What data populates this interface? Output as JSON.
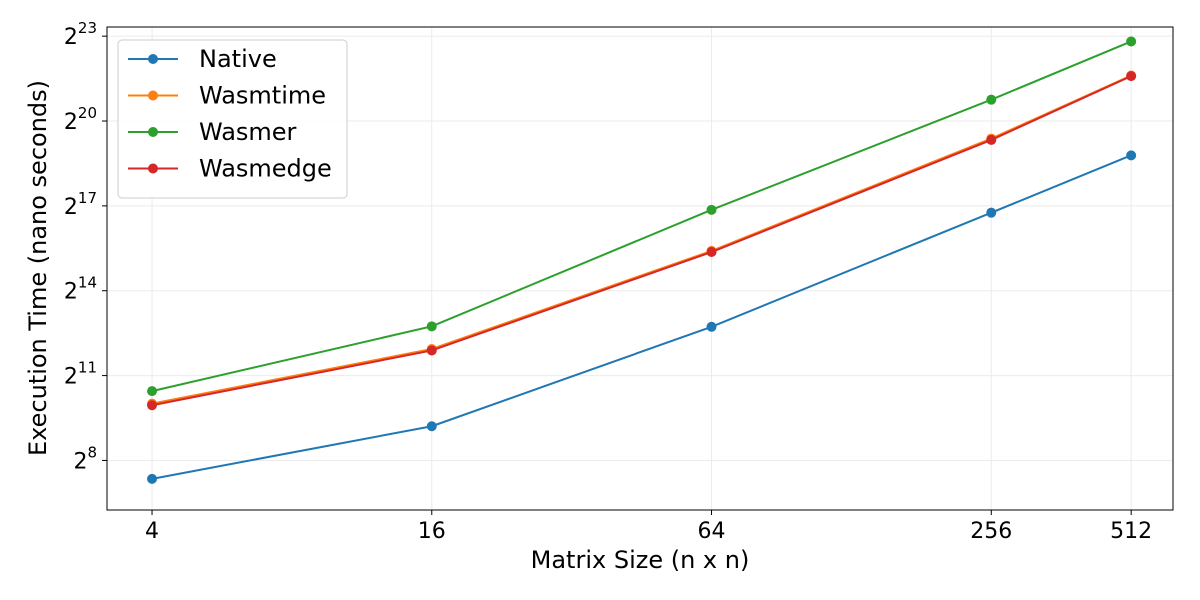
{
  "chart_data": {
    "type": "line",
    "title": "",
    "xlabel": "Matrix Size (n x n)",
    "ylabel": "Execution Time (nano seconds)",
    "x_scale": "log2",
    "y_scale": "log2",
    "x": [
      4,
      16,
      64,
      256,
      512
    ],
    "x_tick_labels": [
      "4",
      "16",
      "64",
      "256",
      "512"
    ],
    "y_ticks": [
      {
        "base": "2",
        "exp": "8",
        "value": 256
      },
      {
        "base": "2",
        "exp": "11",
        "value": 2048
      },
      {
        "base": "2",
        "exp": "14",
        "value": 16384
      },
      {
        "base": "2",
        "exp": "17",
        "value": 131072
      },
      {
        "base": "2",
        "exp": "20",
        "value": 1048576
      },
      {
        "base": "2",
        "exp": "23",
        "value": 8388608
      }
    ],
    "xlim": [
      3.2,
      630
    ],
    "ylim": [
      76,
      10500000
    ],
    "grid": true,
    "legend_position": "top-left",
    "series": [
      {
        "name": "Native",
        "color": "#1f77b4",
        "values": [
          163,
          592,
          6770,
          111000,
          452000
        ]
      },
      {
        "name": "Wasmtime",
        "color": "#ff7f0e",
        "values": [
          1030,
          3930,
          43500,
          682000,
          3200000
        ]
      },
      {
        "name": "Wasmer",
        "color": "#2ca02c",
        "values": [
          1400,
          6850,
          119000,
          1770000,
          7370000
        ]
      },
      {
        "name": "Wasmedge",
        "color": "#d62728",
        "values": [
          990,
          3790,
          42300,
          660000,
          3150000
        ]
      }
    ]
  }
}
